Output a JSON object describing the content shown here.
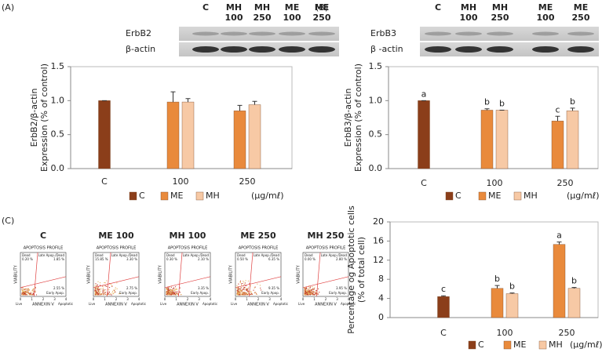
{
  "panels": {
    "a": "(A)",
    "b": "(B)",
    "c": "(C)"
  },
  "blots": [
    {
      "lanes": [
        [
          "C"
        ],
        [
          "MH",
          "100"
        ],
        [
          "MH",
          "250"
        ],
        [
          "ME",
          "100"
        ],
        [
          "ME",
          "250"
        ]
      ],
      "rows": [
        "ErbB2",
        "β-actin"
      ]
    },
    {
      "lanes": [
        [
          "C"
        ],
        [
          "MH",
          "100"
        ],
        [
          "MH",
          "250"
        ],
        [
          "ME",
          "100"
        ],
        [
          "ME",
          "250"
        ]
      ],
      "rows": [
        "ErbB3",
        "β -actin"
      ]
    }
  ],
  "flow_cytometry": {
    "subtitle": "APOPTOSIS PROFILE",
    "x_label": "ANNEXIN V",
    "y_label": "VIABILITY",
    "quadrant_names": {
      "dead": "Dead",
      "late": "Late Apop./Dead",
      "early": "Early Apop."
    },
    "corners": [
      "Live",
      "Apoptotic"
    ],
    "ticks": [
      0,
      1,
      2,
      3,
      4
    ],
    "plots": [
      {
        "title": "C",
        "dead": "0.20 %",
        "late": "1.85 %",
        "early": "2.55 %"
      },
      {
        "title": "ME 100",
        "dead": "15.85 %",
        "late": "3.30 %",
        "early": "2.75 %"
      },
      {
        "title": "MH 100",
        "dead": "0.30 %",
        "late": "2.10 %",
        "early": "3.35 %"
      },
      {
        "title": "ME 250",
        "dead": "0.50 %",
        "late": "6.35 %",
        "early": "9.35 %"
      },
      {
        "title": "MH 250",
        "dead": "0.00 %",
        "late": "2.80 %",
        "early": "3.95 %"
      }
    ]
  },
  "chart_data": [
    {
      "type": "bar",
      "ylabel": [
        "ErbB2/β-actin",
        "Expression (% of control)"
      ],
      "unit_label": "(μg/mℓ)",
      "categories": [
        "C",
        "100",
        "250"
      ],
      "series": [
        {
          "name": "C",
          "color": "#8b3e1a",
          "values": [
            1.0,
            null,
            null
          ],
          "errors": [
            0,
            null,
            null
          ]
        },
        {
          "name": "ME",
          "color": "#e98a3c",
          "values": [
            null,
            0.98,
            0.85
          ],
          "errors": [
            null,
            0.15,
            0.08
          ]
        },
        {
          "name": "MH",
          "color": "#f7c9a5",
          "values": [
            null,
            0.98,
            0.94
          ],
          "errors": [
            null,
            0.05,
            0.05
          ]
        }
      ],
      "ylim": [
        0,
        1.5
      ],
      "yticks": [
        {
          "value": 0,
          "label": "0.0"
        },
        0.5,
        {
          "value": 1,
          "label": "1.0"
        },
        1.5
      ]
    },
    {
      "type": "bar",
      "ylabel": [
        "ErbB3/β-actin",
        "Expression (% of control)"
      ],
      "unit_label": "(μg/mℓ)",
      "categories": [
        "C",
        "100",
        "250"
      ],
      "series": [
        {
          "name": "C",
          "color": "#8b3e1a",
          "values": [
            1.0,
            null,
            null
          ],
          "errors": [
            0,
            null,
            null
          ],
          "annotations": [
            "a",
            null,
            null
          ]
        },
        {
          "name": "ME",
          "color": "#e98a3c",
          "values": [
            null,
            0.86,
            0.7
          ],
          "errors": [
            null,
            0.02,
            0.07
          ],
          "annotations": [
            null,
            "b",
            "c"
          ]
        },
        {
          "name": "MH",
          "color": "#f7c9a5",
          "values": [
            null,
            0.86,
            0.85
          ],
          "errors": [
            null,
            0,
            0.04
          ],
          "annotations": [
            null,
            "b",
            "b"
          ]
        }
      ],
      "ylim": [
        0,
        1.5
      ],
      "yticks": [
        {
          "value": 0,
          "label": "0.0"
        },
        0.5,
        {
          "value": 1,
          "label": "1.0"
        },
        1.5
      ]
    },
    {
      "type": "bar",
      "ylabel": [
        "Percentage og Apoptotic cells",
        "(% of total cell)"
      ],
      "unit_label": "(μg/mℓ)",
      "categories": [
        "C",
        "100",
        "250"
      ],
      "series": [
        {
          "name": "C",
          "color": "#8b3e1a",
          "values": [
            4.4,
            null,
            null
          ],
          "errors": [
            0.15,
            null,
            null
          ],
          "annotations": [
            "c",
            null,
            null
          ]
        },
        {
          "name": "ME",
          "color": "#e98a3c",
          "values": [
            null,
            6.1,
            15.3
          ],
          "errors": [
            null,
            0.6,
            0.5
          ],
          "annotations": [
            null,
            "b",
            "a"
          ]
        },
        {
          "name": "MH",
          "color": "#f7c9a5",
          "values": [
            null,
            5.0,
            6.1
          ],
          "errors": [
            null,
            0.15,
            0.2
          ],
          "annotations": [
            null,
            "b",
            "b"
          ]
        }
      ],
      "ylim": [
        0,
        20
      ],
      "yticks": [
        0,
        4,
        8,
        12,
        16,
        20
      ]
    }
  ]
}
